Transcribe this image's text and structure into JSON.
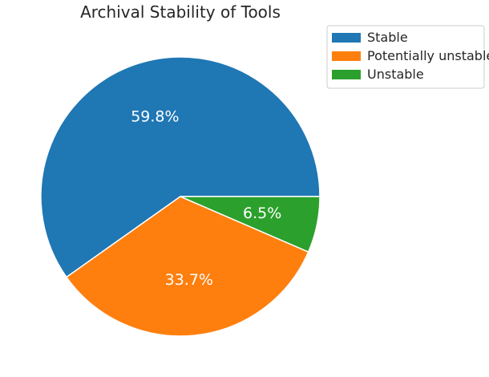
{
  "chart_data": {
    "type": "pie",
    "title": "Archival Stability of Tools",
    "categories": [
      "Stable",
      "Potentially unstable",
      "Unstable"
    ],
    "values": [
      59.8,
      33.7,
      6.5
    ],
    "labels": [
      "59.8%",
      "33.7%",
      "6.5%"
    ],
    "colors": [
      "#1f77b4",
      "#ff7f0e",
      "#2ca02c"
    ],
    "start_angle_deg": 0,
    "direction": "counterclockwise",
    "legend": {
      "placement": "top-right",
      "entries": [
        "Stable",
        "Potentially unstable",
        "Unstable"
      ]
    }
  }
}
